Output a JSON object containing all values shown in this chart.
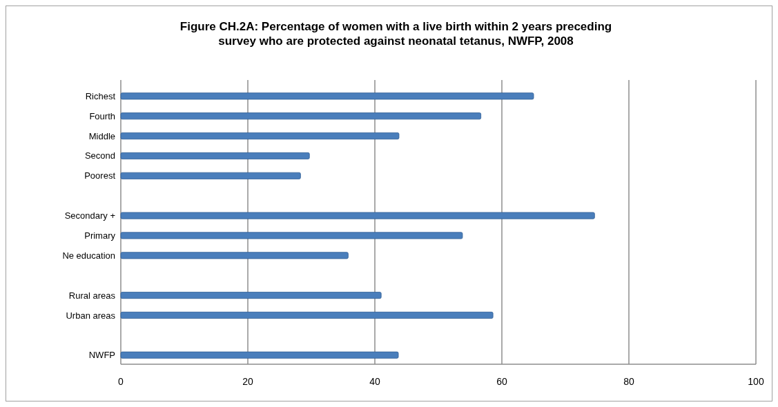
{
  "chart_data": {
    "type": "bar",
    "orientation": "horizontal",
    "title": "Figure CH.2A: Percentage of women with a live birth within 2 years preceding\nsurvey who are protected against neonatal tetanus, NWFP, 2008",
    "categories": [
      "Richest",
      "Fourth",
      "Middle",
      "Second",
      "Poorest",
      null,
      "Secondary +",
      "Primary",
      "Ne education",
      null,
      "Rural areas",
      "Urban areas",
      null,
      "NWFP"
    ],
    "values": [
      65,
      56.7,
      43.8,
      29.7,
      28.3,
      null,
      74.6,
      53.8,
      35.8,
      null,
      41,
      58.6,
      null,
      43.7
    ],
    "color": "#4a7ebb",
    "xlim": [
      0,
      100
    ],
    "xticks": [
      0,
      20,
      40,
      60,
      80,
      100
    ],
    "grid": "x"
  }
}
